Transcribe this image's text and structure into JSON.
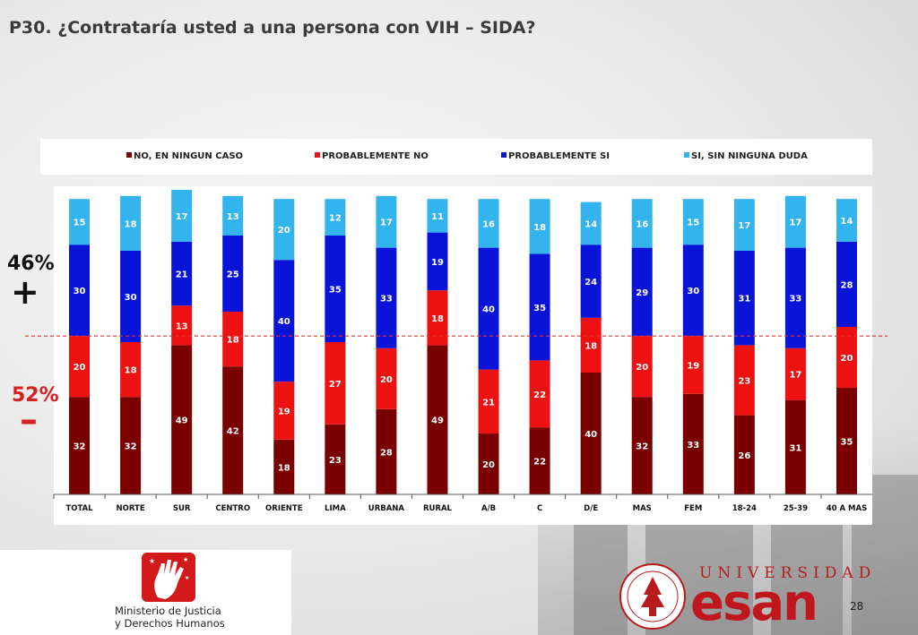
{
  "page": {
    "title": "P30. ¿Contrataría usted a una persona con VIH – SIDA?",
    "page_number": "28"
  },
  "side_labels": {
    "top_pct": "46%",
    "top_sign": "+",
    "bottom_pct": "52%",
    "bottom_sign": "–"
  },
  "colors": {
    "no_en_ningun_caso": "#7a0000",
    "probablemente_no": "#ee1111",
    "probablemente_si": "#0a14d8",
    "si_sin_ninguna_duda": "#33b4ec",
    "dashed_line": "#e53030",
    "brand_red": "#c0161d"
  },
  "logos": {
    "ministry_line1": "Ministerio de Justicia",
    "ministry_line2": "y Derechos Humanos",
    "university_word": "UNIVERSIDAD",
    "university_name": "esan"
  },
  "chart_data": {
    "type": "bar",
    "stacked": true,
    "categories": [
      "TOTAL",
      "NORTE",
      "SUR",
      "CENTRO",
      "ORIENTE",
      "LIMA",
      "URBANA",
      "RURAL",
      "A/B",
      "C",
      "D/E",
      "MAS",
      "FEM",
      "18-24",
      "25-39",
      "40 A MAS"
    ],
    "series": [
      {
        "name": "NO, EN NINGUN CASO",
        "values": [
          32,
          32,
          49,
          42,
          18,
          23,
          28,
          49,
          20,
          22,
          40,
          32,
          33,
          26,
          31,
          35
        ]
      },
      {
        "name": "PROBABLEMENTE NO",
        "values": [
          20,
          18,
          13,
          18,
          19,
          27,
          20,
          18,
          21,
          22,
          18,
          20,
          19,
          23,
          17,
          20
        ]
      },
      {
        "name": "PROBABLEMENTE SI",
        "values": [
          30,
          30,
          21,
          25,
          40,
          35,
          33,
          19,
          40,
          35,
          24,
          29,
          30,
          31,
          33,
          28
        ]
      },
      {
        "name": "SI, SIN NINGUNA DUDA",
        "values": [
          15,
          18,
          17,
          13,
          20,
          12,
          17,
          11,
          16,
          18,
          14,
          16,
          15,
          17,
          17,
          14
        ]
      }
    ],
    "ylim": [
      0,
      100
    ],
    "grid": false,
    "legend_position": "top"
  }
}
